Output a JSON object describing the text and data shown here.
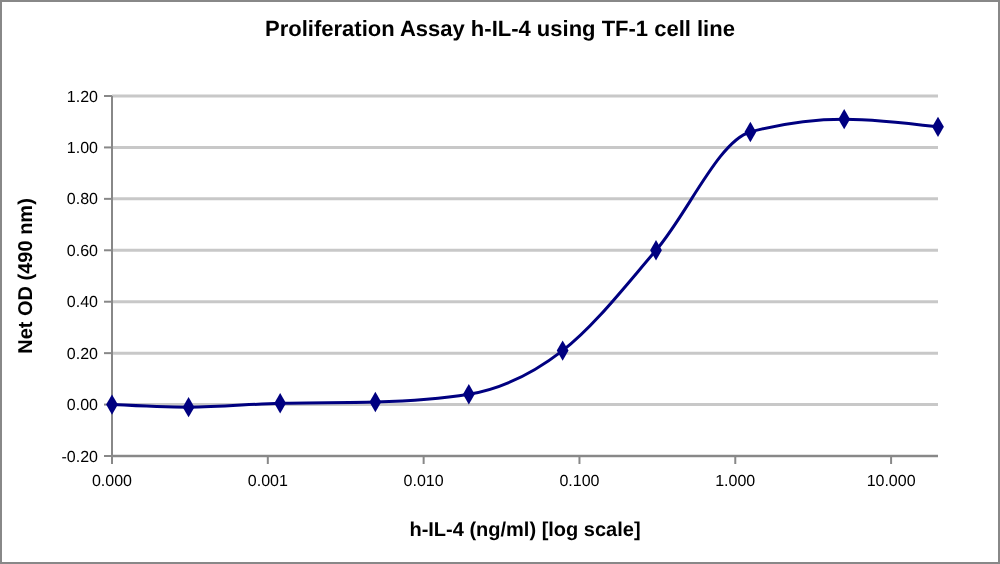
{
  "chart_data": {
    "type": "line",
    "title": "Proliferation Assay h-IL-4 using TF-1 cell line",
    "xlabel": "h-IL-4 (ng/ml) [log scale]",
    "ylabel": "Net OD (490 nm)",
    "x": [
      0.0001,
      0.00031,
      0.0012,
      0.0049,
      0.0195,
      0.078,
      0.31,
      1.25,
      5,
      20
    ],
    "series": [
      {
        "color": "#000080",
        "values": [
          0.0,
          -0.01,
          0.005,
          0.01,
          0.04,
          0.21,
          0.6,
          1.06,
          1.11,
          1.08
        ]
      }
    ],
    "log": "x",
    "xlim": [
      0.0001,
      20
    ],
    "xticks": [
      {
        "value": 0.0001,
        "label": "0.000"
      },
      {
        "value": 0.001,
        "label": "0.001"
      },
      {
        "value": 0.01,
        "label": "0.010"
      },
      {
        "value": 0.1,
        "label": "0.100"
      },
      {
        "value": 1,
        "label": "1.000"
      },
      {
        "value": 10,
        "label": "10.000"
      }
    ],
    "ylim": [
      -0.2,
      1.2
    ],
    "yticks": [
      {
        "value": -0.2,
        "label": "-0.20"
      },
      {
        "value": 0,
        "label": "0.00"
      },
      {
        "value": 0.2,
        "label": "0.20"
      },
      {
        "value": 0.4,
        "label": "0.40"
      },
      {
        "value": 0.6,
        "label": "0.60"
      },
      {
        "value": 0.8,
        "label": "0.80"
      },
      {
        "value": 1,
        "label": "1.00"
      },
      {
        "value": 1.2,
        "label": "1.20"
      }
    ],
    "grid": "y",
    "marker": "diamond",
    "line_style": "solid"
  }
}
